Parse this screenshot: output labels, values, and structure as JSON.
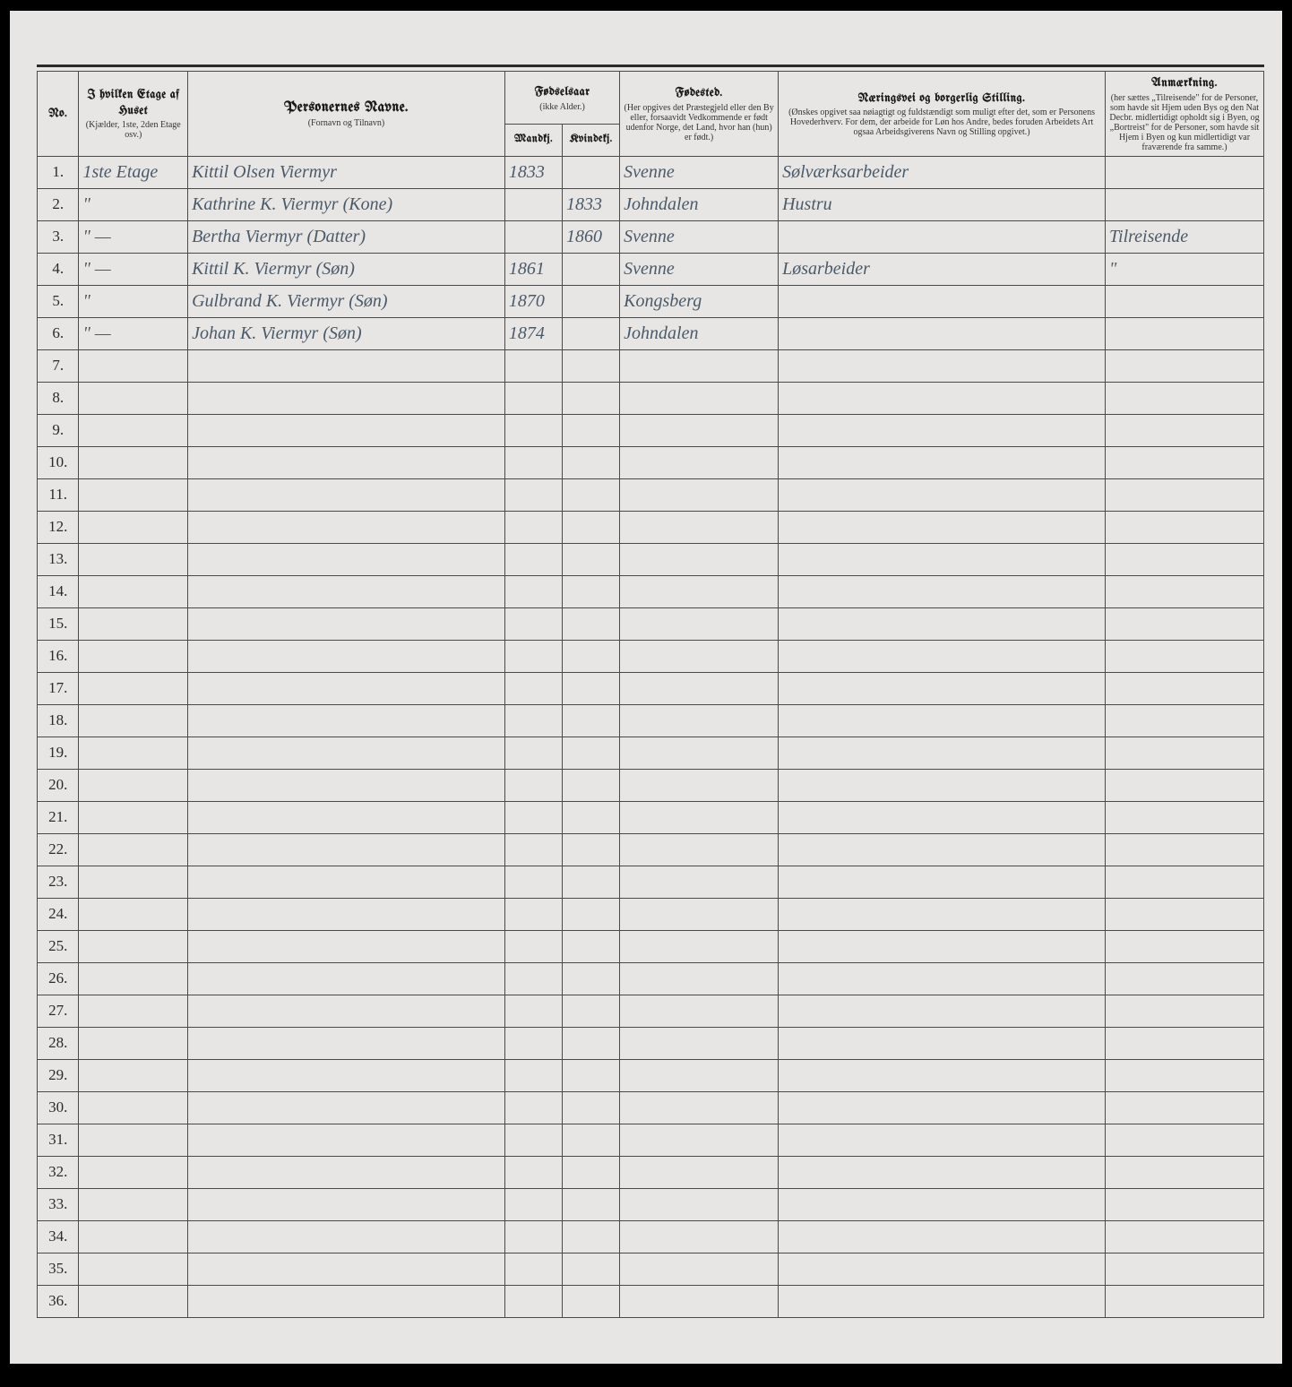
{
  "colors": {
    "page_bg": "#e8e6e4",
    "border": "#4a4a4a",
    "print_text": "#1a1a1a",
    "handwriting": "#4a5a6a"
  },
  "headers": {
    "no": "No.",
    "etage_title": "I hvilken Etage af Huset",
    "etage_note": "(Kjælder, 1ste, 2den Etage osv.)",
    "navn_title": "Personernes Navne.",
    "navn_note": "(Fornavn og Tilnavn)",
    "fodselsaar_title": "Fødselsaar",
    "fodselsaar_note": "(ikke Alder.)",
    "mandkj": "Mandkj.",
    "kvindekj": "Kvindekj.",
    "fodested_title": "Fødested.",
    "fodested_note": "(Her opgives det Præstegjeld eller den By eller, forsaavidt Vedkommende er født udenfor Norge, det Land, hvor han (hun) er født.)",
    "naering_title": "Næringsvei og borgerlig Stilling.",
    "naering_note": "(Ønskes opgivet saa nøiagtigt og fuldstændigt som muligt efter det, som er Personens Hovederhverv. For dem, der arbeide for Løn hos Andre, bedes foruden Arbeidets Art ogsaa Arbeidsgiverens Navn og Stilling opgivet.)",
    "anmerkning_title": "Anmærkning.",
    "anmerkning_note": "(her sættes „Tilreisende\" for de Personer, som havde sit Hjem uden Bys og den Nat Decbr. midlertidigt opholdt sig i Byen, og „Bortreist\" for de Personer, som havde sit Hjem i Byen og kun midlertidigt var fraværende fra samme.)"
  },
  "rows": [
    {
      "no": "1.",
      "etage": "1ste Etage",
      "navn": "Kittil Olsen Viermyr",
      "mand": "1833",
      "kvind": "",
      "fodested": "Svenne",
      "naering": "Sølværksarbeider",
      "anm": ""
    },
    {
      "no": "2.",
      "etage": "\"",
      "navn": "Kathrine K. Viermyr (Kone)",
      "mand": "",
      "kvind": "1833",
      "fodested": "Johndalen",
      "naering": "Hustru",
      "anm": ""
    },
    {
      "no": "3.",
      "etage": "\" —",
      "navn": "Bertha Viermyr (Datter)",
      "mand": "",
      "kvind": "1860",
      "fodested": "Svenne",
      "naering": "",
      "anm": "Tilreisende"
    },
    {
      "no": "4.",
      "etage": "\" —",
      "navn": "Kittil K. Viermyr (Søn)",
      "mand": "1861",
      "kvind": "",
      "fodested": "Svenne",
      "naering": "Løsarbeider",
      "anm": "\""
    },
    {
      "no": "5.",
      "etage": "\"",
      "navn": "Gulbrand K. Viermyr (Søn)",
      "mand": "1870",
      "kvind": "",
      "fodested": "Kongsberg",
      "naering": "",
      "anm": ""
    },
    {
      "no": "6.",
      "etage": "\" —",
      "navn": "Johan K. Viermyr (Søn)",
      "mand": "1874",
      "kvind": "",
      "fodested": "Johndalen",
      "naering": "",
      "anm": ""
    },
    {
      "no": "7.",
      "etage": "",
      "navn": "",
      "mand": "",
      "kvind": "",
      "fodested": "",
      "naering": "",
      "anm": ""
    },
    {
      "no": "8.",
      "etage": "",
      "navn": "",
      "mand": "",
      "kvind": "",
      "fodested": "",
      "naering": "",
      "anm": ""
    },
    {
      "no": "9.",
      "etage": "",
      "navn": "",
      "mand": "",
      "kvind": "",
      "fodested": "",
      "naering": "",
      "anm": ""
    },
    {
      "no": "10.",
      "etage": "",
      "navn": "",
      "mand": "",
      "kvind": "",
      "fodested": "",
      "naering": "",
      "anm": ""
    },
    {
      "no": "11.",
      "etage": "",
      "navn": "",
      "mand": "",
      "kvind": "",
      "fodested": "",
      "naering": "",
      "anm": ""
    },
    {
      "no": "12.",
      "etage": "",
      "navn": "",
      "mand": "",
      "kvind": "",
      "fodested": "",
      "naering": "",
      "anm": ""
    },
    {
      "no": "13.",
      "etage": "",
      "navn": "",
      "mand": "",
      "kvind": "",
      "fodested": "",
      "naering": "",
      "anm": ""
    },
    {
      "no": "14.",
      "etage": "",
      "navn": "",
      "mand": "",
      "kvind": "",
      "fodested": "",
      "naering": "",
      "anm": ""
    },
    {
      "no": "15.",
      "etage": "",
      "navn": "",
      "mand": "",
      "kvind": "",
      "fodested": "",
      "naering": "",
      "anm": ""
    },
    {
      "no": "16.",
      "etage": "",
      "navn": "",
      "mand": "",
      "kvind": "",
      "fodested": "",
      "naering": "",
      "anm": ""
    },
    {
      "no": "17.",
      "etage": "",
      "navn": "",
      "mand": "",
      "kvind": "",
      "fodested": "",
      "naering": "",
      "anm": ""
    },
    {
      "no": "18.",
      "etage": "",
      "navn": "",
      "mand": "",
      "kvind": "",
      "fodested": "",
      "naering": "",
      "anm": ""
    },
    {
      "no": "19.",
      "etage": "",
      "navn": "",
      "mand": "",
      "kvind": "",
      "fodested": "",
      "naering": "",
      "anm": ""
    },
    {
      "no": "20.",
      "etage": "",
      "navn": "",
      "mand": "",
      "kvind": "",
      "fodested": "",
      "naering": "",
      "anm": ""
    },
    {
      "no": "21.",
      "etage": "",
      "navn": "",
      "mand": "",
      "kvind": "",
      "fodested": "",
      "naering": "",
      "anm": ""
    },
    {
      "no": "22.",
      "etage": "",
      "navn": "",
      "mand": "",
      "kvind": "",
      "fodested": "",
      "naering": "",
      "anm": ""
    },
    {
      "no": "23.",
      "etage": "",
      "navn": "",
      "mand": "",
      "kvind": "",
      "fodested": "",
      "naering": "",
      "anm": ""
    },
    {
      "no": "24.",
      "etage": "",
      "navn": "",
      "mand": "",
      "kvind": "",
      "fodested": "",
      "naering": "",
      "anm": ""
    },
    {
      "no": "25.",
      "etage": "",
      "navn": "",
      "mand": "",
      "kvind": "",
      "fodested": "",
      "naering": "",
      "anm": ""
    },
    {
      "no": "26.",
      "etage": "",
      "navn": "",
      "mand": "",
      "kvind": "",
      "fodested": "",
      "naering": "",
      "anm": ""
    },
    {
      "no": "27.",
      "etage": "",
      "navn": "",
      "mand": "",
      "kvind": "",
      "fodested": "",
      "naering": "",
      "anm": ""
    },
    {
      "no": "28.",
      "etage": "",
      "navn": "",
      "mand": "",
      "kvind": "",
      "fodested": "",
      "naering": "",
      "anm": ""
    },
    {
      "no": "29.",
      "etage": "",
      "navn": "",
      "mand": "",
      "kvind": "",
      "fodested": "",
      "naering": "",
      "anm": ""
    },
    {
      "no": "30.",
      "etage": "",
      "navn": "",
      "mand": "",
      "kvind": "",
      "fodested": "",
      "naering": "",
      "anm": ""
    },
    {
      "no": "31.",
      "etage": "",
      "navn": "",
      "mand": "",
      "kvind": "",
      "fodested": "",
      "naering": "",
      "anm": ""
    },
    {
      "no": "32.",
      "etage": "",
      "navn": "",
      "mand": "",
      "kvind": "",
      "fodested": "",
      "naering": "",
      "anm": ""
    },
    {
      "no": "33.",
      "etage": "",
      "navn": "",
      "mand": "",
      "kvind": "",
      "fodested": "",
      "naering": "",
      "anm": ""
    },
    {
      "no": "34.",
      "etage": "",
      "navn": "",
      "mand": "",
      "kvind": "",
      "fodested": "",
      "naering": "",
      "anm": ""
    },
    {
      "no": "35.",
      "etage": "",
      "navn": "",
      "mand": "",
      "kvind": "",
      "fodested": "",
      "naering": "",
      "anm": ""
    },
    {
      "no": "36.",
      "etage": "",
      "navn": "",
      "mand": "",
      "kvind": "",
      "fodested": "",
      "naering": "",
      "anm": ""
    }
  ]
}
